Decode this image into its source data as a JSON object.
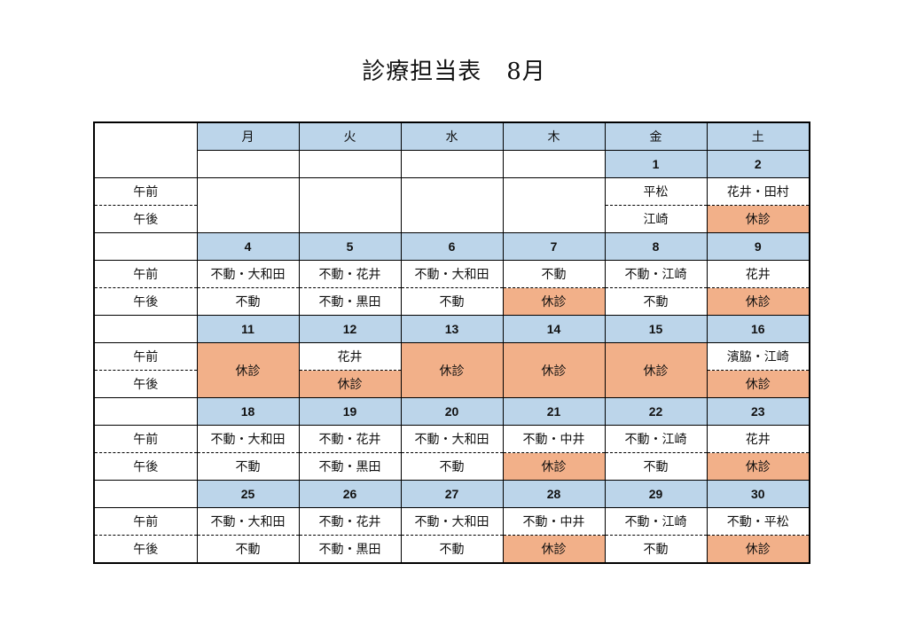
{
  "title": "診療担当表",
  "month": "8月",
  "labels": {
    "am": "午前",
    "pm": "午後"
  },
  "weekdays": [
    "月",
    "火",
    "水",
    "木",
    "金",
    "土"
  ],
  "colors": {
    "header": "#bcd5ea",
    "closed": "#f2b089"
  },
  "weeks": [
    {
      "dates": [
        "",
        "",
        "",
        "",
        "1",
        "2"
      ],
      "am": [
        "",
        "",
        "",
        "",
        "平松",
        "花井・田村"
      ],
      "pm": [
        "",
        "",
        "",
        "",
        "江崎",
        "休診"
      ]
    },
    {
      "dates": [
        "4",
        "5",
        "6",
        "7",
        "8",
        "9"
      ],
      "am": [
        "不動・大和田",
        "不動・花井",
        "不動・大和田",
        "不動",
        "不動・江崎",
        "花井"
      ],
      "pm": [
        "不動",
        "不動・黒田",
        "不動",
        "休診",
        "不動",
        "休診"
      ]
    },
    {
      "dates": [
        "11",
        "12",
        "13",
        "14",
        "15",
        "16"
      ],
      "am": [
        "休診",
        "花井",
        "休診",
        "休診",
        "休診",
        "濱脇・江崎"
      ],
      "pm": [
        "休診",
        "休診",
        "休診",
        "休診",
        "休診",
        "休診"
      ]
    },
    {
      "dates": [
        "18",
        "19",
        "20",
        "21",
        "22",
        "23"
      ],
      "am": [
        "不動・大和田",
        "不動・花井",
        "不動・大和田",
        "不動・中井",
        "不動・江崎",
        "花井"
      ],
      "pm": [
        "不動",
        "不動・黒田",
        "不動",
        "休診",
        "不動",
        "休診"
      ]
    },
    {
      "dates": [
        "25",
        "26",
        "27",
        "28",
        "29",
        "30"
      ],
      "am": [
        "不動・大和田",
        "不動・花井",
        "不動・大和田",
        "不動・中井",
        "不動・江崎",
        "不動・平松"
      ],
      "pm": [
        "不動",
        "不動・黒田",
        "不動",
        "休診",
        "不動",
        "休診"
      ]
    }
  ]
}
